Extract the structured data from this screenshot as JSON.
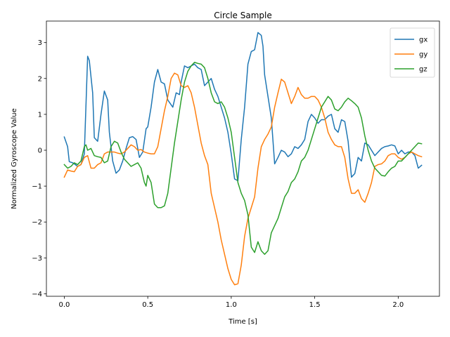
{
  "chart_data": {
    "type": "line",
    "title": "Circle Sample",
    "xlabel": "Time [s]",
    "ylabel": "Normalized Gyroscope Value",
    "xlim": [
      -0.107,
      2.247
    ],
    "ylim": [
      -4.07,
      3.6
    ],
    "xticks": [
      0.0,
      0.5,
      1.0,
      1.5,
      2.0
    ],
    "xtick_labels": [
      "0.0",
      "0.5",
      "1.0",
      "1.5",
      "2.0"
    ],
    "yticks": [
      -4,
      -3,
      -2,
      -1,
      0,
      1,
      2,
      3
    ],
    "ytick_labels": [
      "−4",
      "−3",
      "−2",
      "−1",
      "0",
      "1",
      "2",
      "3"
    ],
    "grid": false,
    "legend_position": "upper right",
    "series": [
      {
        "name": "gx",
        "color": "#1f77b4",
        "x": [
          0.0,
          0.02,
          0.03,
          0.05,
          0.06,
          0.08,
          0.1,
          0.12,
          0.14,
          0.15,
          0.17,
          0.18,
          0.2,
          0.22,
          0.24,
          0.26,
          0.27,
          0.29,
          0.31,
          0.33,
          0.35,
          0.37,
          0.39,
          0.41,
          0.43,
          0.45,
          0.47,
          0.49,
          0.5,
          0.52,
          0.54,
          0.56,
          0.58,
          0.6,
          0.62,
          0.65,
          0.67,
          0.69,
          0.7,
          0.72,
          0.74,
          0.76,
          0.78,
          0.8,
          0.82,
          0.84,
          0.86,
          0.88,
          0.9,
          0.92,
          0.94,
          0.96,
          0.98,
          1.0,
          1.02,
          1.04,
          1.06,
          1.08,
          1.1,
          1.12,
          1.14,
          1.16,
          1.18,
          1.19,
          1.2,
          1.22,
          1.24,
          1.26,
          1.28,
          1.3,
          1.32,
          1.34,
          1.36,
          1.38,
          1.4,
          1.42,
          1.44,
          1.46,
          1.48,
          1.5,
          1.52,
          1.54,
          1.56,
          1.58,
          1.6,
          1.62,
          1.64,
          1.66,
          1.68,
          1.7,
          1.72,
          1.74,
          1.76,
          1.78,
          1.8,
          1.82,
          1.84,
          1.86,
          1.88,
          1.9,
          1.92,
          1.94,
          1.96,
          1.98,
          2.0,
          2.02,
          2.04,
          2.06,
          2.08,
          2.1,
          2.12,
          2.14
        ],
        "y": [
          0.37,
          0.1,
          -0.32,
          -0.35,
          -0.38,
          -0.45,
          -0.4,
          -0.1,
          2.62,
          2.5,
          1.6,
          0.35,
          0.25,
          1.0,
          1.65,
          1.4,
          0.5,
          -0.3,
          -0.64,
          -0.55,
          -0.3,
          0.05,
          0.35,
          0.38,
          0.3,
          -0.2,
          -0.05,
          0.6,
          0.65,
          1.2,
          1.9,
          2.25,
          1.9,
          1.85,
          1.4,
          1.2,
          1.6,
          1.55,
          1.9,
          2.35,
          2.3,
          2.35,
          2.4,
          2.3,
          2.25,
          1.8,
          1.9,
          2.0,
          1.7,
          1.5,
          1.2,
          0.9,
          0.5,
          -0.1,
          -0.8,
          -0.85,
          0.3,
          1.2,
          2.4,
          2.75,
          2.8,
          3.28,
          3.2,
          2.9,
          2.1,
          1.5,
          0.9,
          -0.38,
          -0.2,
          0.0,
          -0.05,
          -0.18,
          -0.1,
          0.1,
          0.05,
          0.15,
          0.3,
          0.8,
          1.0,
          0.9,
          0.75,
          0.85,
          0.85,
          0.95,
          1.0,
          0.6,
          0.5,
          0.85,
          0.8,
          0.25,
          -0.75,
          -0.65,
          -0.2,
          -0.3,
          0.2,
          0.15,
          0.0,
          -0.15,
          -0.05,
          0.05,
          0.1,
          0.12,
          0.15,
          0.12,
          -0.1,
          0.0,
          -0.1,
          -0.05,
          -0.05,
          -0.15,
          -0.5,
          -0.42
        ]
      },
      {
        "name": "gy",
        "color": "#ff7f0e",
        "x": [
          0.0,
          0.02,
          0.04,
          0.06,
          0.08,
          0.1,
          0.12,
          0.14,
          0.16,
          0.18,
          0.2,
          0.22,
          0.24,
          0.26,
          0.28,
          0.3,
          0.32,
          0.34,
          0.36,
          0.38,
          0.4,
          0.42,
          0.44,
          0.46,
          0.48,
          0.5,
          0.52,
          0.54,
          0.56,
          0.58,
          0.6,
          0.62,
          0.64,
          0.66,
          0.68,
          0.7,
          0.72,
          0.74,
          0.76,
          0.78,
          0.8,
          0.82,
          0.84,
          0.86,
          0.88,
          0.9,
          0.92,
          0.94,
          0.96,
          0.98,
          1.0,
          1.02,
          1.04,
          1.06,
          1.08,
          1.1,
          1.12,
          1.14,
          1.16,
          1.18,
          1.2,
          1.22,
          1.24,
          1.26,
          1.28,
          1.3,
          1.32,
          1.34,
          1.36,
          1.38,
          1.4,
          1.42,
          1.44,
          1.46,
          1.48,
          1.5,
          1.52,
          1.54,
          1.56,
          1.58,
          1.6,
          1.62,
          1.64,
          1.66,
          1.68,
          1.7,
          1.72,
          1.74,
          1.76,
          1.78,
          1.8,
          1.82,
          1.84,
          1.86,
          1.88,
          1.9,
          1.92,
          1.94,
          1.96,
          1.98,
          2.0,
          2.02,
          2.04,
          2.06,
          2.08,
          2.1,
          2.12,
          2.14
        ],
        "y": [
          -0.75,
          -0.55,
          -0.58,
          -0.6,
          -0.45,
          -0.4,
          -0.2,
          -0.15,
          -0.5,
          -0.5,
          -0.4,
          -0.35,
          -0.1,
          -0.05,
          -0.05,
          -0.05,
          -0.08,
          -0.1,
          -0.05,
          0.05,
          0.15,
          0.1,
          0.0,
          0.02,
          -0.05,
          -0.08,
          -0.1,
          -0.1,
          0.1,
          0.6,
          1.1,
          1.5,
          2.0,
          2.15,
          2.1,
          1.8,
          1.75,
          1.8,
          1.6,
          1.2,
          0.7,
          0.2,
          -0.15,
          -0.4,
          -1.2,
          -1.6,
          -2.0,
          -2.5,
          -2.9,
          -3.3,
          -3.6,
          -3.75,
          -3.72,
          -3.2,
          -2.4,
          -1.9,
          -1.6,
          -1.3,
          -0.5,
          0.1,
          0.3,
          0.45,
          0.65,
          1.2,
          1.6,
          1.98,
          1.9,
          1.6,
          1.3,
          1.5,
          1.75,
          1.55,
          1.45,
          1.45,
          1.5,
          1.5,
          1.4,
          1.2,
          0.9,
          0.5,
          0.3,
          0.15,
          0.1,
          0.1,
          -0.2,
          -0.8,
          -1.2,
          -1.2,
          -1.1,
          -1.35,
          -1.45,
          -1.2,
          -0.9,
          -0.45,
          -0.4,
          -0.38,
          -0.3,
          -0.15,
          -0.1,
          -0.1,
          -0.2,
          -0.25,
          -0.2,
          -0.1,
          -0.05,
          -0.1,
          -0.15,
          -0.18
        ]
      },
      {
        "name": "gz",
        "color": "#2ca02c",
        "x": [
          0.0,
          0.02,
          0.04,
          0.06,
          0.08,
          0.1,
          0.12,
          0.13,
          0.14,
          0.16,
          0.18,
          0.2,
          0.22,
          0.24,
          0.26,
          0.28,
          0.3,
          0.32,
          0.34,
          0.36,
          0.38,
          0.4,
          0.42,
          0.44,
          0.46,
          0.48,
          0.49,
          0.5,
          0.52,
          0.54,
          0.56,
          0.58,
          0.6,
          0.62,
          0.64,
          0.66,
          0.68,
          0.7,
          0.72,
          0.74,
          0.76,
          0.78,
          0.8,
          0.82,
          0.84,
          0.86,
          0.88,
          0.9,
          0.92,
          0.94,
          0.96,
          0.98,
          1.0,
          1.02,
          1.04,
          1.06,
          1.08,
          1.1,
          1.12,
          1.14,
          1.16,
          1.18,
          1.2,
          1.22,
          1.24,
          1.26,
          1.28,
          1.3,
          1.32,
          1.34,
          1.36,
          1.38,
          1.4,
          1.42,
          1.44,
          1.46,
          1.48,
          1.5,
          1.52,
          1.54,
          1.56,
          1.58,
          1.6,
          1.62,
          1.64,
          1.66,
          1.68,
          1.7,
          1.72,
          1.74,
          1.76,
          1.78,
          1.8,
          1.82,
          1.84,
          1.86,
          1.88,
          1.9,
          1.92,
          1.94,
          1.96,
          1.98,
          2.0,
          2.02,
          2.04,
          2.06,
          2.08,
          2.1,
          2.12,
          2.14
        ],
        "y": [
          -0.4,
          -0.5,
          -0.45,
          -0.35,
          -0.4,
          -0.3,
          0.1,
          0.15,
          0.0,
          0.05,
          -0.15,
          -0.18,
          -0.2,
          -0.35,
          -0.3,
          0.1,
          0.25,
          0.2,
          -0.05,
          -0.25,
          -0.35,
          -0.45,
          -0.4,
          -0.35,
          -0.5,
          -0.9,
          -1.0,
          -0.7,
          -0.9,
          -1.5,
          -1.6,
          -1.6,
          -1.55,
          -1.2,
          -0.5,
          0.2,
          0.8,
          1.4,
          1.9,
          2.2,
          2.35,
          2.45,
          2.42,
          2.4,
          2.3,
          2.0,
          1.6,
          1.35,
          1.3,
          1.35,
          1.2,
          0.9,
          0.5,
          -0.2,
          -0.9,
          -1.2,
          -1.4,
          -1.8,
          -2.7,
          -2.85,
          -2.55,
          -2.8,
          -2.9,
          -2.8,
          -2.3,
          -2.1,
          -1.9,
          -1.6,
          -1.3,
          -1.15,
          -0.9,
          -0.8,
          -0.6,
          -0.3,
          -0.2,
          0.0,
          0.3,
          0.6,
          0.9,
          1.2,
          1.35,
          1.5,
          1.4,
          1.15,
          1.1,
          1.2,
          1.35,
          1.45,
          1.38,
          1.3,
          1.2,
          0.9,
          0.4,
          0.0,
          -0.3,
          -0.5,
          -0.6,
          -0.7,
          -0.72,
          -0.6,
          -0.5,
          -0.45,
          -0.3,
          -0.3,
          -0.2,
          -0.1,
          0.0,
          0.1,
          0.2,
          0.18
        ]
      }
    ]
  }
}
